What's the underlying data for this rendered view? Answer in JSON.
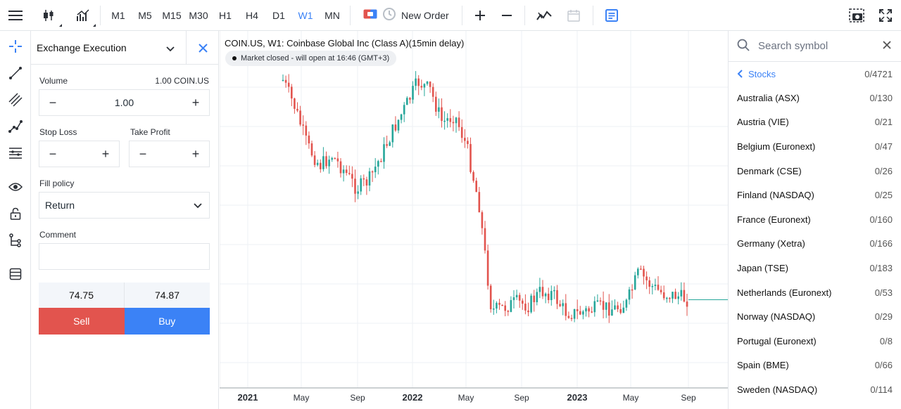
{
  "toolbar": {
    "menu_icon": "hamburger-icon",
    "chart_type_icon": "candlestick-icon",
    "indicators_icon": "bar-chart-icon",
    "timeframes": [
      "M1",
      "M5",
      "M15",
      "M30",
      "H1",
      "H4",
      "D1",
      "W1",
      "MN"
    ],
    "active_timeframe": "W1",
    "new_order_label": "New Order",
    "screenshot_icon": "camera-icon",
    "fullscreen_icon": "expand-icon"
  },
  "order_panel": {
    "title": "Exchange Execution",
    "volume_label": "Volume",
    "volume_hint": "1.00 COIN.US",
    "volume_value": "1.00",
    "stop_loss_label": "Stop Loss",
    "take_profit_label": "Take Profit",
    "fill_policy_label": "Fill policy",
    "fill_policy_value": "Return",
    "comment_label": "Comment",
    "comment_value": "",
    "bid": "74.75",
    "ask": "74.87",
    "sell_label": "Sell",
    "buy_label": "Buy"
  },
  "chart": {
    "title": "COIN.US, W1: Coinbase Global Inc (Class A)(15min delay)",
    "status": "Market closed - will open at 16:46 (GMT+3)",
    "x_labels": [
      {
        "label": "2021",
        "bold": true
      },
      {
        "label": "May",
        "bold": false
      },
      {
        "label": "Sep",
        "bold": false
      },
      {
        "label": "2022",
        "bold": true
      },
      {
        "label": "May",
        "bold": false
      },
      {
        "label": "Sep",
        "bold": false
      },
      {
        "label": "2023",
        "bold": true
      },
      {
        "label": "May",
        "bold": false
      },
      {
        "label": "Sep",
        "bold": false
      }
    ],
    "up_color": "#26a69a",
    "down_color": "#e2544e",
    "current_price_line_color": "#26a69a"
  },
  "chart_data": {
    "type": "candlestick",
    "symbol": "COIN.US",
    "timeframe": "W1",
    "start": "2021-04",
    "end": "2023-09",
    "close_path": [
      342,
      308,
      262,
      238,
      250,
      232,
      210,
      220,
      250,
      282,
      310,
      340,
      330,
      290,
      300,
      260,
      190,
      62,
      65,
      72,
      68,
      85,
      82,
      60,
      58,
      62,
      66,
      64,
      70,
      108,
      92,
      82,
      80,
      74.8
    ],
    "last_price": 74.8
  },
  "symbols": {
    "search_placeholder": "Search symbol",
    "category": "Stocks",
    "category_count": "0/4721",
    "markets": [
      {
        "name": "Australia (ASX)",
        "count": "0/130"
      },
      {
        "name": "Austria (VIE)",
        "count": "0/21"
      },
      {
        "name": "Belgium (Euronext)",
        "count": "0/47"
      },
      {
        "name": "Denmark (CSE)",
        "count": "0/26"
      },
      {
        "name": "Finland (NASDAQ)",
        "count": "0/25"
      },
      {
        "name": "France (Euronext)",
        "count": "0/160"
      },
      {
        "name": "Germany (Xetra)",
        "count": "0/166"
      },
      {
        "name": "Japan (TSE)",
        "count": "0/183"
      },
      {
        "name": "Netherlands (Euronext)",
        "count": "0/53"
      },
      {
        "name": "Norway (NASDAQ)",
        "count": "0/29"
      },
      {
        "name": "Portugal (Euronext)",
        "count": "0/8"
      },
      {
        "name": "Spain (BME)",
        "count": "0/66"
      },
      {
        "name": "Sweden (NASDAQ)",
        "count": "0/114"
      }
    ]
  }
}
